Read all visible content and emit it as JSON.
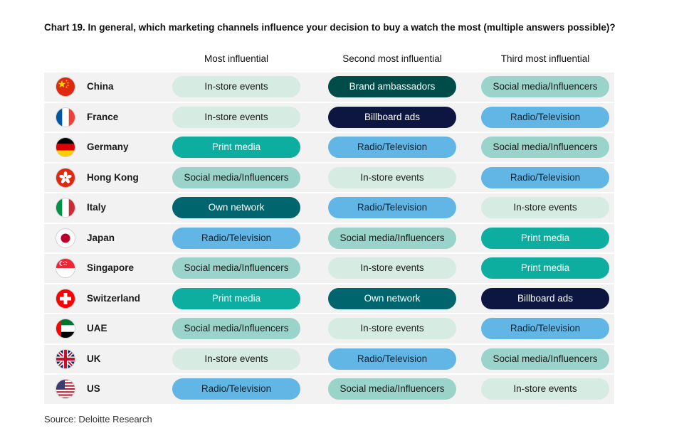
{
  "title": "Chart 19. In general, which marketing channels influence your decision to buy a watch the most (multiple answers possible)?",
  "columns": [
    "Most influential",
    "Second most influential",
    "Third most influential"
  ],
  "channel_colors": {
    "In-store events": "#d6ebe1",
    "Social media/Influencers": "#99d3c9",
    "Radio/Television": "#62b6e5",
    "Print media": "#0dada0",
    "Own network": "#00656d",
    "Brand ambassadors": "#004c4a",
    "Billboard ads": "#0c1641"
  },
  "chart_data": {
    "type": "table",
    "title": "Chart 19. In general, which marketing channels influence your decision to buy a watch the most (multiple answers possible)?",
    "columns": [
      "Most influential",
      "Second most influential",
      "Third most influential"
    ],
    "rows": [
      {
        "country": "China",
        "flag": "china-flag-icon",
        "values": [
          "In-store events",
          "Brand ambassadors",
          "Social media/Influencers"
        ]
      },
      {
        "country": "France",
        "flag": "france-flag-icon",
        "values": [
          "In-store events",
          "Billboard ads",
          "Radio/Television"
        ]
      },
      {
        "country": "Germany",
        "flag": "germany-flag-icon",
        "values": [
          "Print media",
          "Radio/Television",
          "Social media/Influencers"
        ]
      },
      {
        "country": "Hong Kong",
        "flag": "hong-kong-flag-icon",
        "values": [
          "Social media/Influencers",
          "In-store events",
          "Radio/Television"
        ]
      },
      {
        "country": "Italy",
        "flag": "italy-flag-icon",
        "values": [
          "Own network",
          "Radio/Television",
          "In-store events"
        ]
      },
      {
        "country": "Japan",
        "flag": "japan-flag-icon",
        "values": [
          "Radio/Television",
          "Social media/Influencers",
          "Print media"
        ]
      },
      {
        "country": "Singapore",
        "flag": "singapore-flag-icon",
        "values": [
          "Social media/Influencers",
          "In-store events",
          "Print media"
        ]
      },
      {
        "country": "Switzerland",
        "flag": "switzerland-flag-icon",
        "values": [
          "Print media",
          "Own network",
          "Billboard ads"
        ]
      },
      {
        "country": "UAE",
        "flag": "uae-flag-icon",
        "values": [
          "Social media/Influencers",
          "In-store events",
          "Radio/Television"
        ]
      },
      {
        "country": "UK",
        "flag": "uk-flag-icon",
        "values": [
          "In-store events",
          "Radio/Television",
          "Social media/Influencers"
        ]
      },
      {
        "country": "US",
        "flag": "us-flag-icon",
        "values": [
          "Radio/Television",
          "Social media/Influencers",
          "In-store events"
        ]
      }
    ]
  },
  "source": "Source: Deloitte Research"
}
